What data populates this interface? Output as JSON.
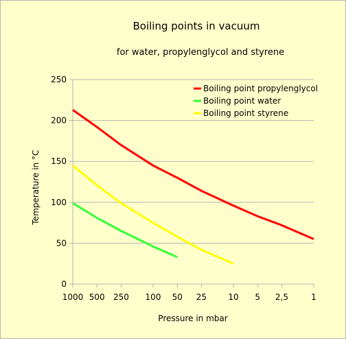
{
  "chart_data": {
    "type": "line",
    "title": "Boiling points in vacuum",
    "subtitle": "for water, propylenglycol and styrene",
    "xlabel": "Pressure in mbar",
    "ylabel": "Temperature in °C",
    "x_scale": "log",
    "x_reversed": true,
    "xlim": [
      1000,
      1
    ],
    "xticks": [
      1000,
      500,
      250,
      100,
      50,
      25,
      10,
      5,
      2.5,
      1
    ],
    "xtick_labels": [
      "1000",
      "500",
      "250",
      "100",
      "50",
      "25",
      "10",
      "5",
      "2,5",
      "1"
    ],
    "ylim": [
      0,
      250
    ],
    "yticks": [
      0,
      50,
      100,
      150,
      200,
      250
    ],
    "ytick_labels": [
      "0",
      "50",
      "100",
      "150",
      "200",
      "250"
    ],
    "grid": "horizontal",
    "legend_position": "top-right",
    "series": [
      {
        "name": "Boiling point propylenglycol",
        "color": "#ff0000",
        "x": [
          1000,
          500,
          250,
          100,
          50,
          25,
          10,
          5,
          2.5,
          1
        ],
        "y": [
          213,
          192,
          170,
          145,
          130,
          114,
          96,
          83,
          72,
          55
        ]
      },
      {
        "name": "Boiling point water",
        "color": "#33ff33",
        "x": [
          1000,
          500,
          250,
          100,
          50
        ],
        "y": [
          99,
          81,
          65,
          46,
          33
        ]
      },
      {
        "name": "Boiling point styrene",
        "color": "#ffff00",
        "x": [
          1000,
          500,
          250,
          100,
          50,
          25,
          10
        ],
        "y": [
          145,
          121,
          99,
          75,
          58,
          42,
          25
        ]
      }
    ]
  }
}
